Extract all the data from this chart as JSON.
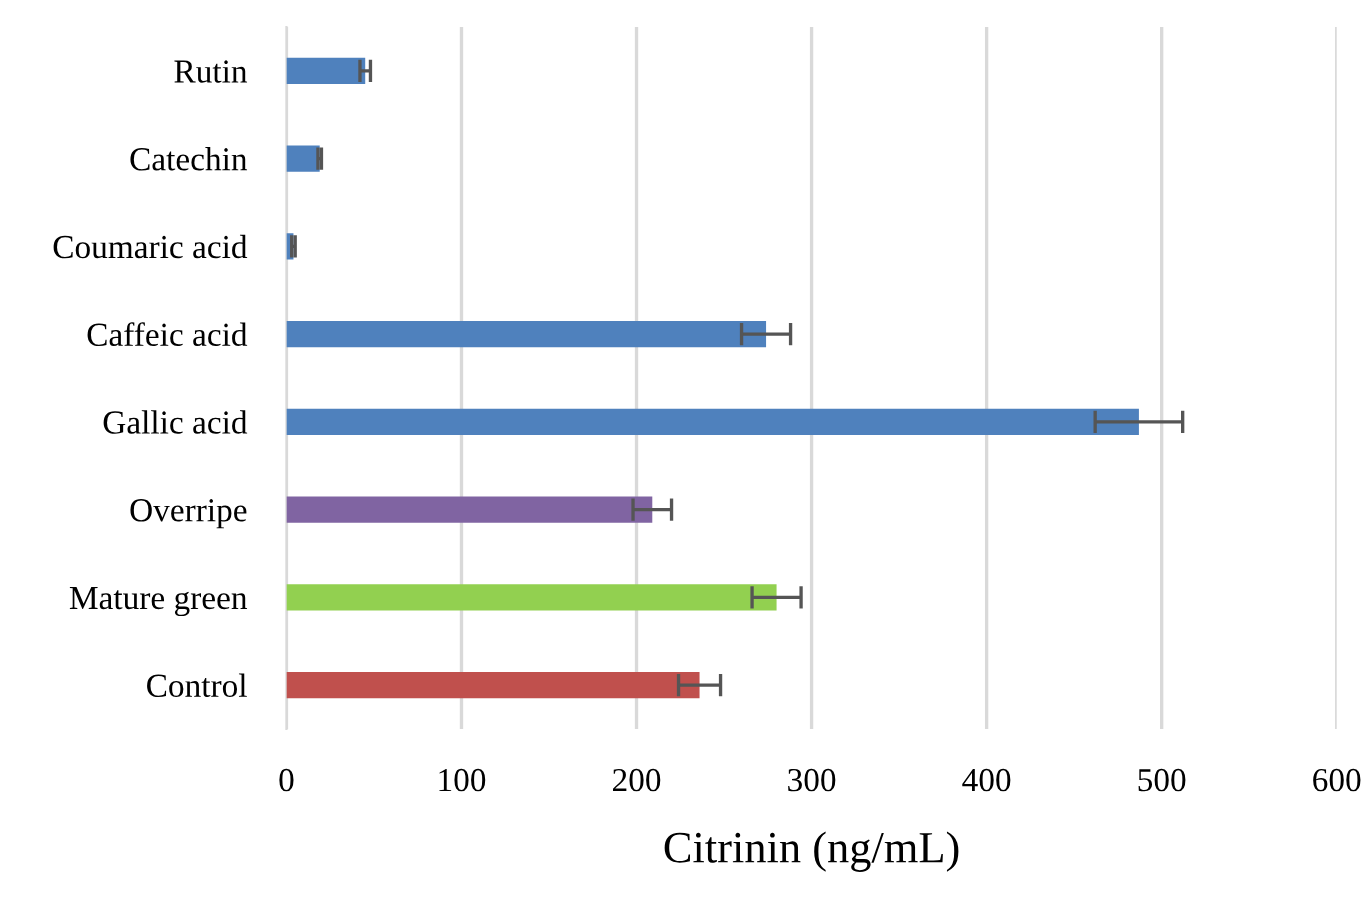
{
  "chart_data": {
    "type": "bar",
    "orientation": "horizontal",
    "xlabel": "Citrinin (ng/mL)",
    "categories": [
      "Rutin",
      "Catechin",
      "Coumaric acid",
      "Caffeic acid",
      "Gallic acid",
      "Overripe",
      "Mature green",
      "Control"
    ],
    "values": [
      45,
      19,
      4,
      274,
      487,
      209,
      280,
      236
    ],
    "errors": [
      3,
      1,
      1,
      14,
      25,
      11,
      14,
      12
    ],
    "colors": [
      "#4f81bd",
      "#4f81bd",
      "#4f81bd",
      "#4f81bd",
      "#4f81bd",
      "#8064a2",
      "#92d050",
      "#c0504d"
    ],
    "xlim": [
      0,
      600
    ],
    "xticks": [
      0,
      100,
      200,
      300,
      400,
      500,
      600
    ],
    "grid": "x"
  }
}
